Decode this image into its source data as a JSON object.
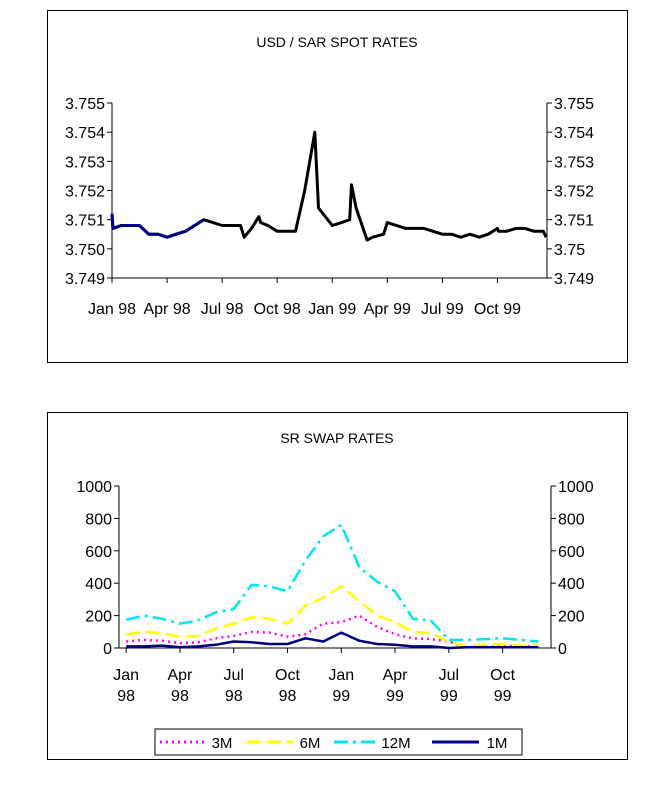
{
  "charts": [
    {
      "id": "spot",
      "chart_data": {
        "type": "line",
        "title": "USD / SAR SPOT RATES",
        "xlabel": "",
        "ylabel": "",
        "ylim": [
          3.749,
          3.755
        ],
        "yticks": [
          3.755,
          3.754,
          3.753,
          3.752,
          3.751,
          3.75,
          3.749
        ],
        "yticks_left_labels": [
          "3.755",
          "3.754",
          "3.753",
          "3.752",
          "3.751",
          "3.750",
          "3.749"
        ],
        "yticks_right_labels": [
          "3.755",
          "3.754",
          "3.753",
          "3.752",
          "3.751",
          "3.75",
          "3.749"
        ],
        "x_range": [
          0,
          23.7
        ],
        "xtick_labels": [
          "Jan 98",
          "Apr 98",
          "Jul 98",
          "Oct 98",
          "Jan 99",
          "Apr 99",
          "Jul 99",
          "Oct 99"
        ],
        "xtick_positions": [
          0,
          3,
          6,
          9,
          12,
          15,
          18,
          21
        ],
        "series": [
          {
            "name": "USD/SAR",
            "color": "#000000",
            "points": [
              [
                0.0,
                3.7512
              ],
              [
                0.05,
                3.7507
              ],
              [
                0.5,
                3.7508
              ],
              [
                1.0,
                3.7508
              ],
              [
                1.5,
                3.7508
              ],
              [
                2.0,
                3.7505
              ],
              [
                2.5,
                3.7505
              ],
              [
                3.0,
                3.7504
              ],
              [
                3.5,
                3.7505
              ],
              [
                4.0,
                3.7506
              ],
              [
                4.5,
                3.7508
              ],
              [
                5.0,
                3.751
              ],
              [
                5.5,
                3.7509
              ],
              [
                6.0,
                3.7508
              ],
              [
                6.5,
                3.7508
              ],
              [
                7.0,
                3.7508
              ],
              [
                7.2,
                3.7504
              ],
              [
                7.6,
                3.7507
              ],
              [
                8.0,
                3.7511
              ],
              [
                8.1,
                3.7509
              ],
              [
                8.5,
                3.7508
              ],
              [
                9.0,
                3.7506
              ],
              [
                9.5,
                3.7506
              ],
              [
                10.0,
                3.7506
              ],
              [
                10.5,
                3.752
              ],
              [
                11.05,
                3.754
              ],
              [
                11.25,
                3.7514
              ],
              [
                12.0,
                3.7508
              ],
              [
                12.5,
                3.7509
              ],
              [
                12.95,
                3.751
              ],
              [
                13.05,
                3.7522
              ],
              [
                13.3,
                3.7514
              ],
              [
                13.9,
                3.7503
              ],
              [
                14.2,
                3.7504
              ],
              [
                14.8,
                3.7505
              ],
              [
                15.0,
                3.7509
              ],
              [
                15.5,
                3.7508
              ],
              [
                16.0,
                3.7507
              ],
              [
                16.5,
                3.7507
              ],
              [
                17.0,
                3.7507
              ],
              [
                17.5,
                3.7506
              ],
              [
                18.0,
                3.7505
              ],
              [
                18.5,
                3.7505
              ],
              [
                19.0,
                3.7504
              ],
              [
                19.5,
                3.7505
              ],
              [
                20.0,
                3.7504
              ],
              [
                20.5,
                3.7505
              ],
              [
                21.0,
                3.7507
              ],
              [
                21.05,
                3.7506
              ],
              [
                21.5,
                3.7506
              ],
              [
                22.0,
                3.7507
              ],
              [
                22.5,
                3.7507
              ],
              [
                23.0,
                3.7506
              ],
              [
                23.5,
                3.7506
              ],
              [
                23.65,
                3.7504
              ]
            ]
          }
        ]
      }
    },
    {
      "id": "swap",
      "chart_data": {
        "type": "line",
        "title": "SR SWAP RATES",
        "xlabel": "",
        "ylabel": "",
        "ylim": [
          0,
          1000
        ],
        "yticks": [
          1000,
          800,
          600,
          400,
          200,
          0
        ],
        "yticks_left_labels": [
          "1000",
          "800",
          "600",
          "400",
          "200",
          "0"
        ],
        "yticks_right_labels": [
          "1000",
          "800",
          "600",
          "400",
          "200",
          "0"
        ],
        "x_range": [
          -0.4,
          23.7
        ],
        "xtick_labels": [
          [
            "Jan",
            "98"
          ],
          [
            "Apr",
            "98"
          ],
          [
            "Jul",
            "98"
          ],
          [
            "Oct",
            "98"
          ],
          [
            "Jan",
            "99"
          ],
          [
            "Apr",
            "99"
          ],
          [
            "Jul",
            "99"
          ],
          [
            "Oct",
            "99"
          ]
        ],
        "xtick_positions": [
          0,
          3,
          6,
          9,
          12,
          15,
          18,
          21
        ],
        "series": [
          {
            "name": "3M",
            "color": "#ff00ff",
            "dash": "2 4",
            "values": [
              40,
              50,
              45,
              30,
              35,
              60,
              75,
              100,
              95,
              70,
              85,
              150,
              160,
              200,
              130,
              85,
              60,
              55,
              40,
              5,
              5,
              15,
              10,
              10
            ]
          },
          {
            "name": "6M",
            "color": "#ffff00",
            "dash": "14 6",
            "values": [
              85,
              100,
              90,
              70,
              75,
              120,
              150,
              190,
              180,
              150,
              260,
              310,
              380,
              290,
              200,
              160,
              100,
              90,
              40,
              10,
              20,
              25,
              15,
              15
            ]
          },
          {
            "name": "12M",
            "color": "#00e5ee",
            "dash": "14 5 3 5",
            "values": [
              175,
              200,
              180,
              150,
              170,
              220,
              240,
              390,
              380,
              350,
              540,
              690,
              760,
              500,
              410,
              350,
              180,
              170,
              50,
              50,
              55,
              60,
              50,
              40
            ]
          },
          {
            "name": "1M",
            "color": "#000080",
            "dash": "",
            "values": [
              10,
              10,
              15,
              5,
              10,
              20,
              40,
              35,
              25,
              25,
              60,
              40,
              95,
              45,
              25,
              20,
              10,
              10,
              0,
              5,
              5,
              5,
              5,
              5
            ]
          }
        ],
        "legend": [
          "3M",
          "6M",
          "12M",
          "1M"
        ]
      }
    }
  ]
}
